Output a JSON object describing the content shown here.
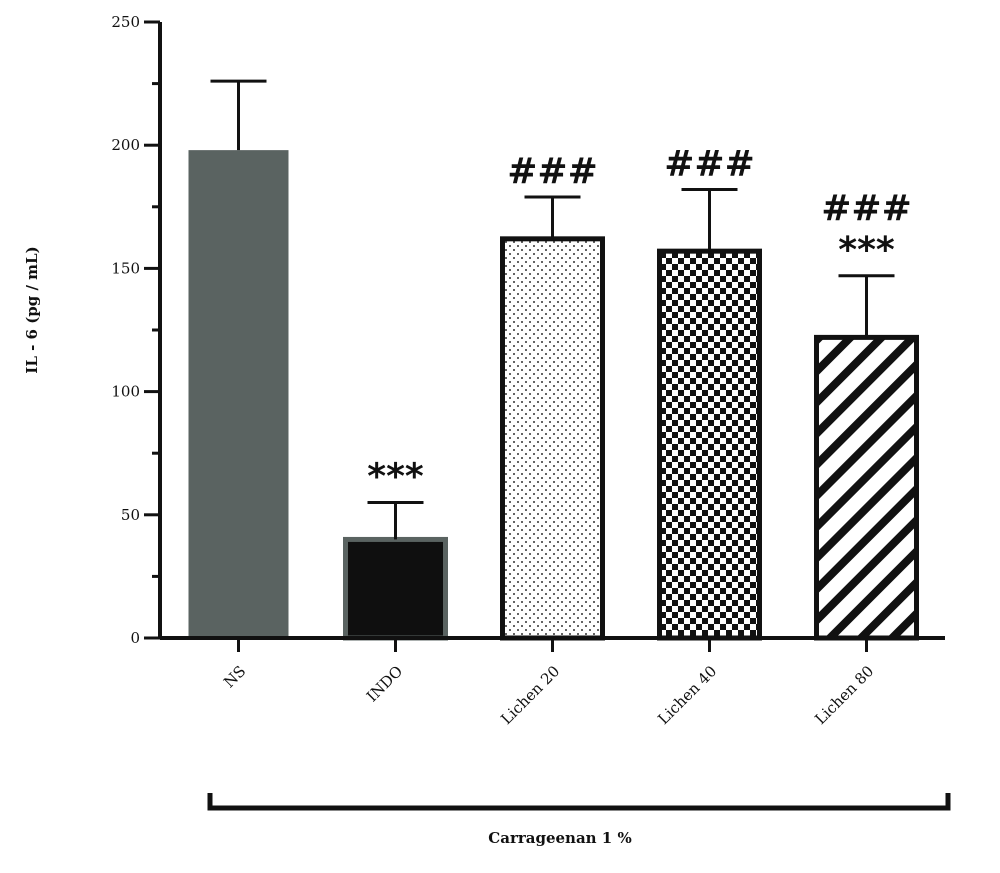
{
  "chart_data": {
    "type": "bar",
    "ylabel": "IL - 6 (pg / mL)",
    "xlabel": "",
    "ylim": [
      0,
      250
    ],
    "yticks": [
      0,
      50,
      100,
      150,
      200,
      250
    ],
    "categories": [
      "NS",
      "INDO",
      "Lichen 20",
      "Lichen 40",
      "Lichen 80"
    ],
    "values": [
      198,
      40,
      162,
      157,
      122
    ],
    "error": [
      28,
      15,
      17,
      25,
      25
    ],
    "annotations": [
      [],
      [
        "***"
      ],
      [
        "###"
      ],
      [
        "###"
      ],
      [
        "***",
        "###"
      ]
    ],
    "styles": [
      {
        "fill": "#5a6361",
        "pattern": "solid"
      },
      {
        "fill": "#0f0f0f",
        "pattern": "solid"
      },
      {
        "fill": "#ffffff",
        "pattern": "dots"
      },
      {
        "fill": "#ffffff",
        "pattern": "checker"
      },
      {
        "fill": "#ffffff",
        "pattern": "diagonal"
      }
    ],
    "group_bracket_label": "Carrageenan 1 %",
    "grid": false
  }
}
